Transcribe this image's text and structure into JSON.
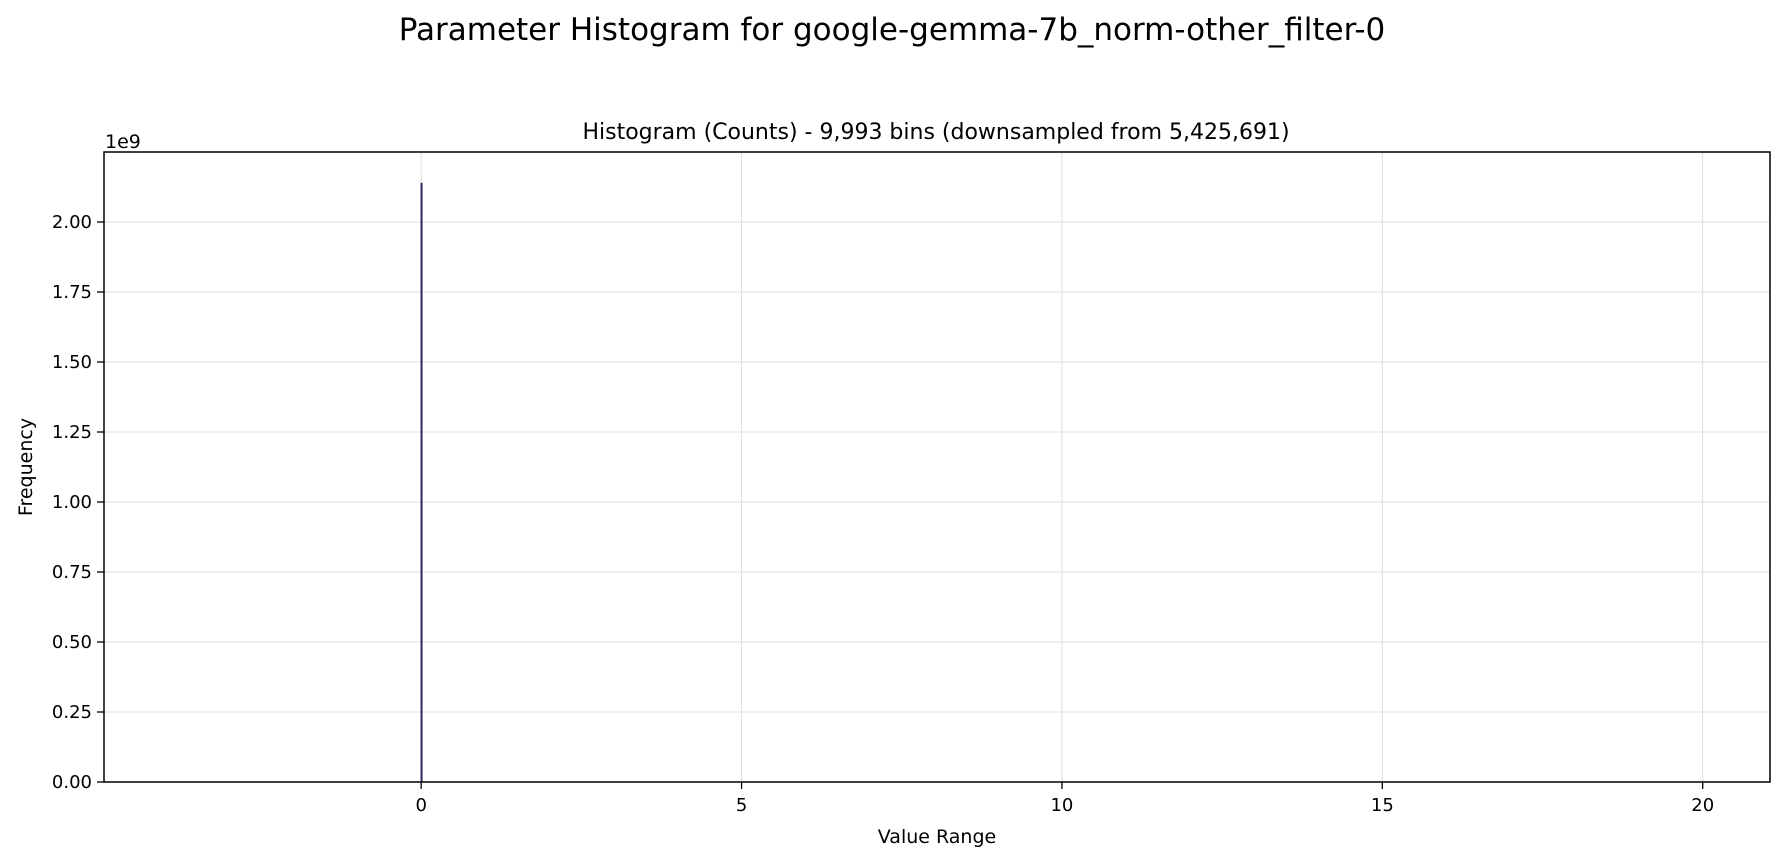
{
  "page": {
    "suptitle": "Parameter Histogram for google-gemma-7b_norm-other_filter-0"
  },
  "chart_data": {
    "type": "bar",
    "title": "Histogram (Counts) - 9,993 bins (downsampled from 5,425,691)",
    "xlabel": "Value Range",
    "ylabel": "Frequency",
    "y_offset_label": "1e9",
    "xlim": [
      -4.95,
      21.05
    ],
    "ylim": [
      0,
      2.25
    ],
    "y_scale_multiplier": 1000000000,
    "x_ticks": [
      0,
      5,
      10,
      15,
      20
    ],
    "x_tick_labels": [
      "0",
      "5",
      "10",
      "15",
      "20"
    ],
    "y_ticks": [
      0,
      0.25,
      0.5,
      0.75,
      1.0,
      1.25,
      1.5,
      1.75,
      2.0
    ],
    "y_tick_labels": [
      "0.00",
      "0.25",
      "0.50",
      "0.75",
      "1.00",
      "1.25",
      "1.50",
      "1.75",
      "2.00"
    ],
    "grid": true,
    "legend": "none",
    "bar_color": "#1f1f5a",
    "bins": [
      {
        "x": 0.0,
        "width": 0.02,
        "value": 2.14
      }
    ]
  }
}
